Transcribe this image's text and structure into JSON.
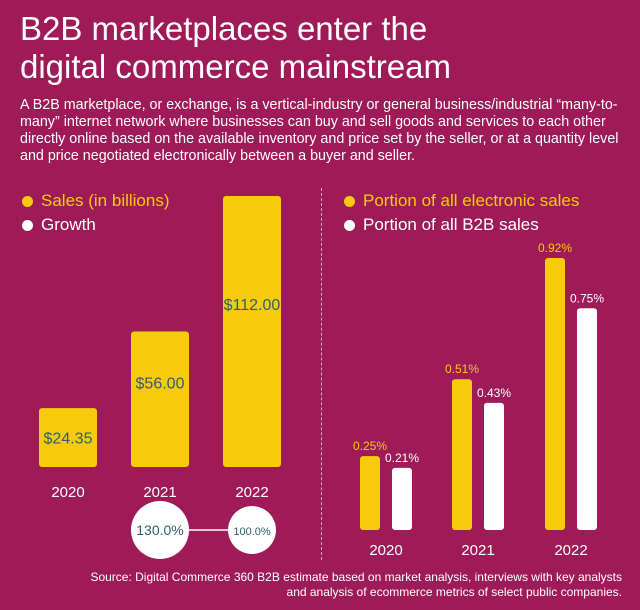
{
  "title_lines": [
    "B2B marketplaces enter the",
    "digital commerce mainstream"
  ],
  "description": "A B2B marketplace, or exchange, is a vertical-industry or general business/industrial “many-to-many” internet network where businesses can buy and sell goods and services to each other directly online based on the available inventory and price set by the seller, or at a quantity level and price negotiated electronically between a buyer and seller.",
  "source": "Source: Digital Commerce 360 B2B estimate based on market analysis, interviews with key analysts and analysis of ecommerce metrics of select public companies.",
  "colors": {
    "background": "#9e1b57",
    "yellow": "#f5cb0c",
    "white": "#ffffff",
    "label_dark": "#2e5e74"
  },
  "legend_left": [
    {
      "label": "Sales (in billions)",
      "color": "#f5cb0c"
    },
    {
      "label": "Growth",
      "color": "#ffffff"
    }
  ],
  "legend_right": [
    {
      "label": "Portion of all electronic sales",
      "color": "#f5cb0c"
    },
    {
      "label": "Portion of all B2B sales",
      "color": "#ffffff"
    }
  ],
  "chart_data": [
    {
      "type": "bar",
      "categories": [
        "2020",
        "2021",
        "2022"
      ],
      "series": [
        {
          "name": "Sales (in billions)",
          "values": [
            24.35,
            56.0,
            112.0
          ],
          "labels": [
            "$24.35",
            "$56.00",
            "$112.00"
          ]
        }
      ],
      "growth": {
        "name": "Growth",
        "values": [
          130.0,
          100.0
        ],
        "labels": [
          "130.0%",
          "100.0%"
        ],
        "between": [
          [
            "2020",
            "2021"
          ],
          [
            "2021",
            "2022"
          ]
        ]
      },
      "ylim": [
        0,
        112
      ]
    },
    {
      "type": "bar",
      "categories": [
        "2020",
        "2021",
        "2022"
      ],
      "series": [
        {
          "name": "Portion of all electronic sales",
          "values": [
            0.25,
            0.51,
            0.92
          ],
          "labels": [
            "0.25%",
            "0.51%",
            "0.92%"
          ]
        },
        {
          "name": "Portion of all B2B sales",
          "values": [
            0.21,
            0.43,
            0.75
          ],
          "labels": [
            "0.21%",
            "0.43%",
            "0.75%"
          ]
        }
      ],
      "ylim": [
        0,
        0.92
      ]
    }
  ]
}
